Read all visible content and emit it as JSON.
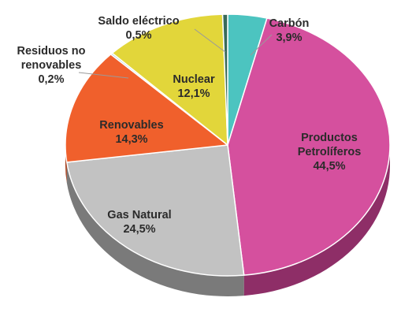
{
  "chart_data": {
    "type": "pie",
    "style": "3d",
    "slices": [
      {
        "name": "Carbón",
        "line1": "Carbón",
        "line2": "",
        "value_label": "3,9%",
        "value": 3.9,
        "color": "#4cc4c0",
        "side": "#2e8f8c"
      },
      {
        "name": "Productos Petrolíferos",
        "line1": "Productos",
        "line2": "Petrolíferos",
        "value_label": "44,5%",
        "value": 44.5,
        "color": "#d5509e",
        "side": "#8e2e67"
      },
      {
        "name": "Gas Natural",
        "line1": "Gas Natural",
        "line2": "",
        "value_label": "24,5%",
        "value": 24.5,
        "color": "#c2c2c2",
        "side": "#7a7a7a"
      },
      {
        "name": "Renovables",
        "line1": "Renovables",
        "line2": "",
        "value_label": "14,3%",
        "value": 14.3,
        "color": "#f0602c",
        "side": "#a53c18"
      },
      {
        "name": "Residuos no renovables",
        "line1": "Residuos no",
        "line2": "renovables",
        "value_label": "0,2%",
        "value": 0.2,
        "color": "#9ec9d8",
        "side": "#6a8f9c"
      },
      {
        "name": "Nuclear",
        "line1": "Nuclear",
        "line2": "",
        "value_label": "12,1%",
        "value": 12.1,
        "color": "#e2d63a",
        "side": "#9e9524"
      },
      {
        "name": "Saldo eléctrico",
        "line1": "Saldo eléctrico",
        "line2": "",
        "value_label": "0,5%",
        "value": 0.5,
        "color": "#3a6b5a",
        "side": "#234237"
      }
    ]
  }
}
